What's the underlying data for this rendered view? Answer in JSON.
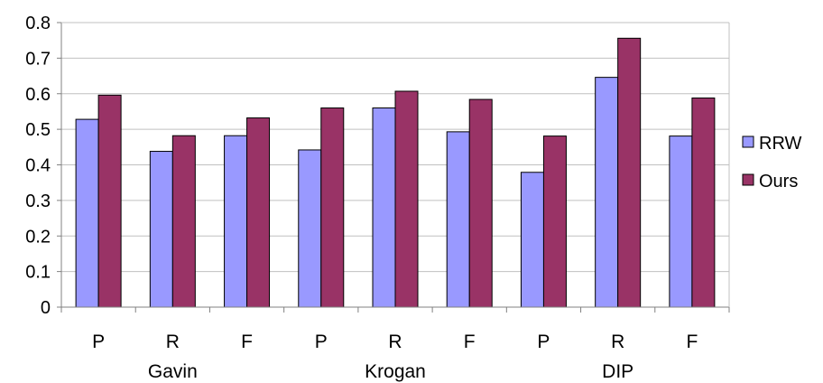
{
  "chart_data": {
    "type": "bar",
    "title": "",
    "xlabel": "",
    "ylabel": "",
    "ylim": [
      0,
      0.8
    ],
    "yticks": [
      "0",
      "0.1",
      "0.2",
      "0.3",
      "0.4",
      "0.5",
      "0.6",
      "0.7",
      "0.8"
    ],
    "grid": true,
    "legend_position": "right",
    "categories": [
      "P",
      "R",
      "F",
      "P",
      "R",
      "F",
      "P",
      "R",
      "F"
    ],
    "groups": [
      {
        "label": "Gavin",
        "span": 3
      },
      {
        "label": "Krogan",
        "span": 3
      },
      {
        "label": "DIP",
        "span": 3
      }
    ],
    "series": [
      {
        "name": "RRW",
        "color": "#9999ff",
        "values": [
          0.528,
          0.438,
          0.482,
          0.442,
          0.56,
          0.493,
          0.379,
          0.646,
          0.481
        ]
      },
      {
        "name": "Ours",
        "color": "#993366",
        "values": [
          0.596,
          0.482,
          0.532,
          0.56,
          0.607,
          0.584,
          0.481,
          0.756,
          0.588
        ]
      }
    ]
  }
}
